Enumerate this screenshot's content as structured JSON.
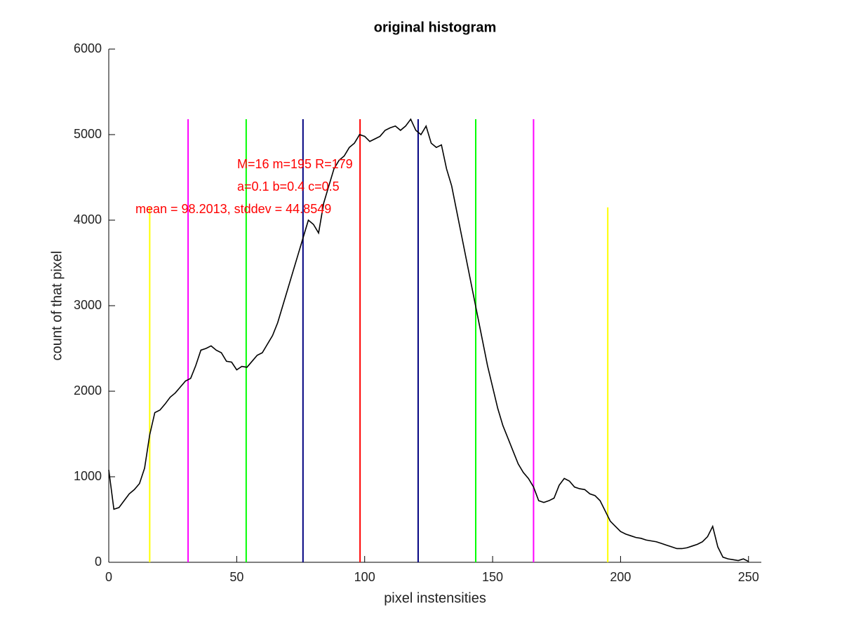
{
  "chart_data": {
    "type": "line",
    "title": "original histogram",
    "x_label": "pixel instensities",
    "y_label": "count of that pixel",
    "xlim": [
      0,
      255
    ],
    "ylim": [
      0,
      6000
    ],
    "xticks": [
      0,
      50,
      100,
      150,
      200,
      250
    ],
    "yticks": [
      0,
      1000,
      2000,
      3000,
      4000,
      5000,
      6000
    ],
    "annotations": [
      "M=16 m=195 R=179",
      "a=0.1 b=0.4 c=0.5",
      "mean = 98.2013, stddev = 44.8549"
    ],
    "series": [
      {
        "color": "#000000",
        "x": [
          0,
          2,
          4,
          6,
          8,
          10,
          12,
          14,
          16,
          18,
          20,
          22,
          24,
          26,
          28,
          30,
          32,
          34,
          36,
          38,
          40,
          42,
          44,
          46,
          48,
          50,
          52,
          54,
          56,
          58,
          60,
          62,
          64,
          66,
          68,
          70,
          72,
          74,
          76,
          78,
          80,
          82,
          84,
          86,
          88,
          90,
          92,
          94,
          96,
          98,
          100,
          102,
          104,
          106,
          108,
          110,
          112,
          114,
          116,
          118,
          120,
          122,
          124,
          126,
          128,
          130,
          132,
          134,
          136,
          138,
          140,
          142,
          144,
          146,
          148,
          150,
          152,
          154,
          156,
          158,
          160,
          162,
          164,
          166,
          168,
          170,
          172,
          174,
          176,
          178,
          180,
          182,
          184,
          186,
          188,
          190,
          192,
          194,
          196,
          198,
          200,
          202,
          204,
          206,
          208,
          210,
          212,
          214,
          216,
          218,
          220,
          222,
          224,
          226,
          228,
          230,
          232,
          234,
          236,
          238,
          240,
          242,
          244,
          246,
          248,
          250
        ],
        "values": [
          1080,
          620,
          640,
          720,
          800,
          850,
          920,
          1100,
          1490,
          1750,
          1780,
          1850,
          1930,
          1980,
          2050,
          2120,
          2150,
          2300,
          2480,
          2500,
          2530,
          2480,
          2450,
          2350,
          2340,
          2250,
          2290,
          2280,
          2350,
          2420,
          2450,
          2550,
          2650,
          2800,
          3000,
          3200,
          3400,
          3600,
          3800,
          4000,
          3950,
          3850,
          4200,
          4400,
          4600,
          4700,
          4750,
          4850,
          4900,
          5000,
          4980,
          4920,
          4950,
          4980,
          5050,
          5080,
          5100,
          5050,
          5100,
          5180,
          5050,
          5000,
          5100,
          4900,
          4850,
          4880,
          4600,
          4400,
          4100,
          3800,
          3500,
          3200,
          2900,
          2600,
          2300,
          2050,
          1800,
          1600,
          1450,
          1300,
          1150,
          1050,
          980,
          880,
          720,
          700,
          720,
          750,
          900,
          980,
          950,
          880,
          860,
          850,
          800,
          780,
          720,
          600,
          480,
          420,
          360,
          330,
          310,
          290,
          280,
          260,
          250,
          240,
          220,
          200,
          180,
          160,
          160,
          170,
          190,
          210,
          240,
          300,
          420,
          180,
          60,
          40,
          30,
          20,
          40,
          10
        ]
      },
      {
        "color": "#ffff00",
        "x": [
          16,
          16
        ],
        "values": [
          0,
          4150
        ]
      },
      {
        "color": "#ffff00",
        "x": [
          195,
          195
        ],
        "values": [
          0,
          4150
        ]
      },
      {
        "color": "#ff00ff",
        "x": [
          31,
          31
        ],
        "values": [
          0,
          5180
        ]
      },
      {
        "color": "#ff00ff",
        "x": [
          166,
          166
        ],
        "values": [
          0,
          5180
        ]
      },
      {
        "color": "#00ff00",
        "x": [
          53.7,
          53.7
        ],
        "values": [
          0,
          5180
        ]
      },
      {
        "color": "#00ff00",
        "x": [
          143.4,
          143.4
        ],
        "values": [
          0,
          5180
        ]
      },
      {
        "color": "#000080",
        "x": [
          75.9,
          75.9
        ],
        "values": [
          0,
          5180
        ]
      },
      {
        "color": "#000080",
        "x": [
          120.9,
          120.9
        ],
        "values": [
          0,
          5180
        ]
      },
      {
        "color": "#ff0000",
        "x": [
          98.2,
          98.2
        ],
        "values": [
          0,
          5180
        ]
      }
    ]
  }
}
